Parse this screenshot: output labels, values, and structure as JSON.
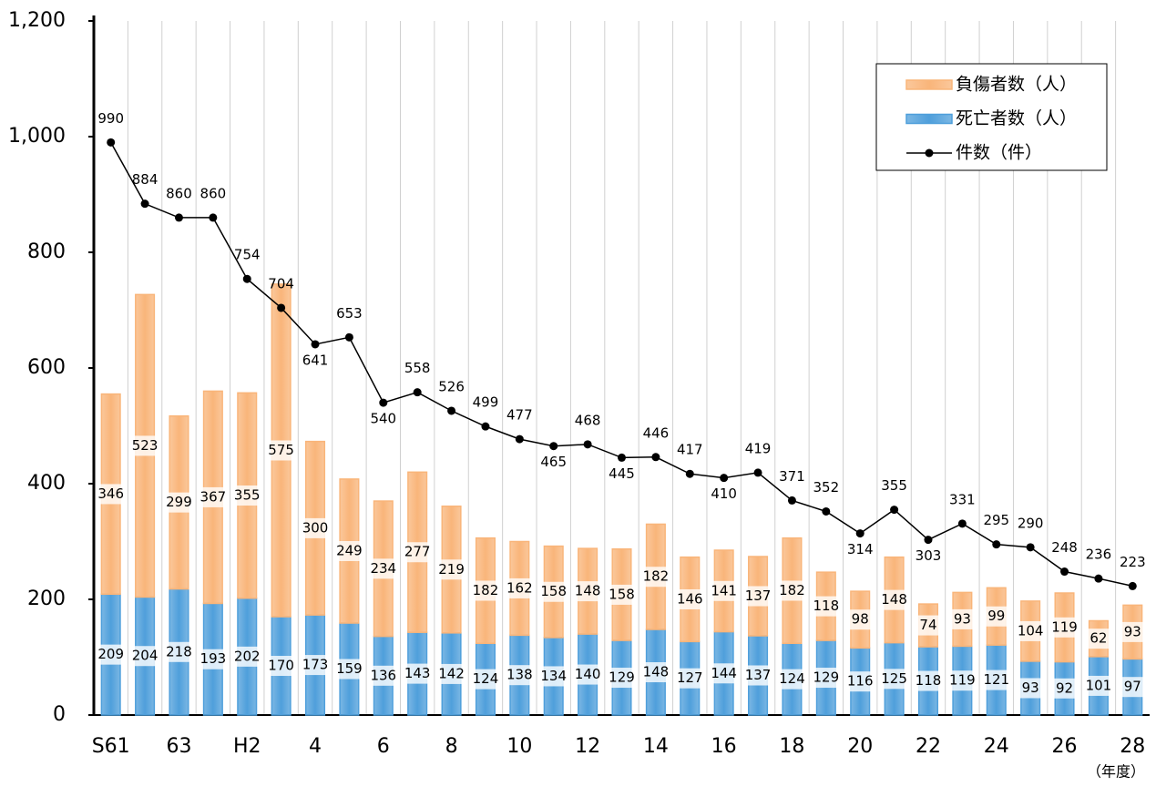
{
  "chart_data": {
    "type": "bar",
    "categories": [
      "S61",
      null,
      "63",
      null,
      "H2",
      null,
      "4",
      null,
      "6",
      null,
      "8",
      null,
      "10",
      null,
      "12",
      null,
      "14",
      null,
      "16",
      null,
      "18",
      null,
      "20",
      null,
      "22",
      null,
      "24",
      null,
      "26",
      null,
      "28"
    ],
    "x_unit_label": "（年度）",
    "ylim": [
      0,
      1200
    ],
    "yticks": [
      0,
      200,
      400,
      600,
      800,
      {
        "value": 1000,
        "label": "1,000"
      },
      {
        "value": 1200,
        "label": "1,200"
      }
    ],
    "grid_x": true,
    "legend": "top-right",
    "series": [
      {
        "name": "負傷者数（人）",
        "type": "bar",
        "color": "#f9b57a",
        "values": [
          346,
          523,
          299,
          367,
          355,
          575,
          300,
          249,
          234,
          277,
          219,
          182,
          162,
          158,
          148,
          158,
          182,
          146,
          141,
          137,
          182,
          118,
          98,
          148,
          74,
          93,
          99,
          104,
          119,
          62,
          93
        ]
      },
      {
        "name": "死亡者数（人）",
        "type": "bar",
        "color": "#4f9fdb",
        "values": [
          209,
          204,
          218,
          193,
          202,
          170,
          173,
          159,
          136,
          143,
          142,
          124,
          138,
          134,
          140,
          129,
          148,
          127,
          144,
          137,
          124,
          129,
          116,
          125,
          118,
          119,
          121,
          93,
          92,
          101,
          97
        ]
      },
      {
        "name": "件数（件）",
        "type": "line",
        "color": "#000000",
        "values": [
          990,
          884,
          860,
          860,
          754,
          704,
          641,
          653,
          540,
          558,
          526,
          499,
          477,
          465,
          468,
          445,
          446,
          417,
          410,
          419,
          371,
          352,
          314,
          355,
          303,
          331,
          295,
          290,
          248,
          236,
          223
        ]
      }
    ]
  }
}
